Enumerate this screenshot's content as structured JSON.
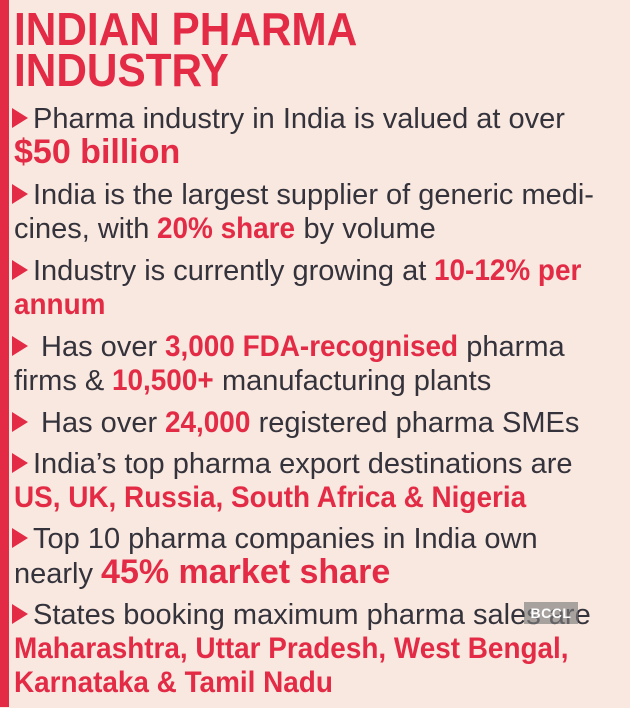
{
  "title": "INDIAN PHARMA\nINDUSTRY",
  "colors": {
    "accent_red": "#e32b46",
    "background": "#f9e8e0",
    "body_text": "#34323b"
  },
  "watermark": {
    "label": "BCCL"
  },
  "bullets": [
    {
      "segments": [
        {
          "text": "Pharma industry in India is valued at over\n",
          "highlight": false
        },
        {
          "text": "$50 billion",
          "highlight": true,
          "size": "lg"
        }
      ]
    },
    {
      "segments": [
        {
          "text": "India is the largest supplier of generic medi-\ncines, with ",
          "highlight": false
        },
        {
          "text": "20% share",
          "highlight": true
        },
        {
          "text": " by volume",
          "highlight": false
        }
      ]
    },
    {
      "segments": [
        {
          "text": "Industry is currently growing at ",
          "highlight": false
        },
        {
          "text": "10-12% per\nannum",
          "highlight": true
        }
      ]
    },
    {
      "segments": [
        {
          "text": " Has over ",
          "highlight": false
        },
        {
          "text": "3,000 FDA-recognised",
          "highlight": true
        },
        {
          "text": " pharma\nfirms & ",
          "highlight": false
        },
        {
          "text": "10,500+",
          "highlight": true
        },
        {
          "text": " manufacturing plants",
          "highlight": false
        }
      ]
    },
    {
      "segments": [
        {
          "text": " Has over ",
          "highlight": false
        },
        {
          "text": "24,000",
          "highlight": true
        },
        {
          "text": " registered pharma SMEs",
          "highlight": false
        }
      ]
    },
    {
      "segments": [
        {
          "text": "India’s top pharma export destinations are\n",
          "highlight": false
        },
        {
          "text": "US, UK, Russia, South Africa & Nigeria",
          "highlight": true
        }
      ]
    },
    {
      "segments": [
        {
          "text": "Top 10 pharma companies in India own\nnearly ",
          "highlight": false
        },
        {
          "text": "45% market share",
          "highlight": true,
          "size": "lg"
        }
      ]
    },
    {
      "segments": [
        {
          "text": "States booking maximum pharma sales are\n",
          "highlight": false
        },
        {
          "text": "Maharashtra, Uttar Pradesh, West Bengal,\nKarnataka & Tamil Nadu",
          "highlight": true
        }
      ]
    }
  ]
}
